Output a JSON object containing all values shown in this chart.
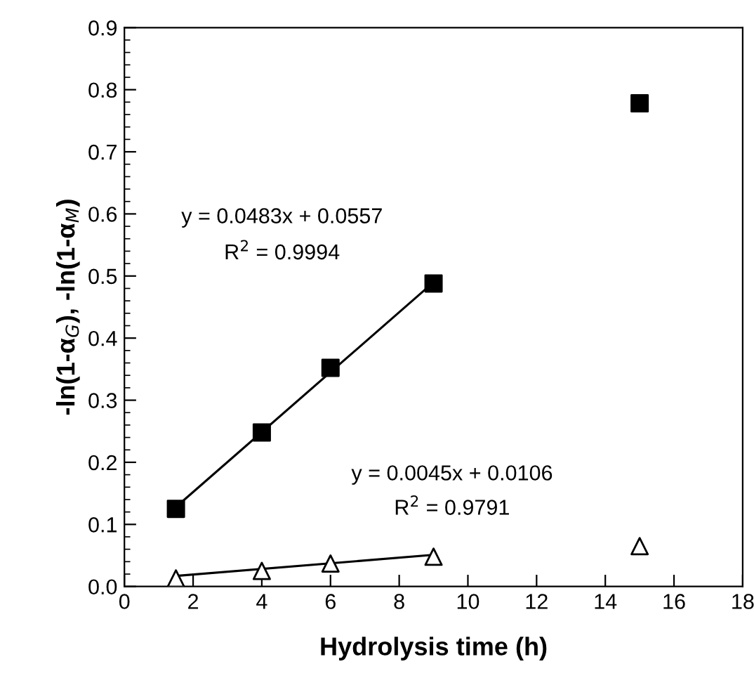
{
  "chart_data": {
    "type": "scatter",
    "xlabel": "Hydrolysis time (h)",
    "ylabel": "-ln(1-α$_{G}$), -ln(1-α$_{M}$)",
    "xlim": [
      0,
      18
    ],
    "xticks": [
      0,
      2,
      4,
      6,
      8,
      10,
      12,
      14,
      16,
      18
    ],
    "ylim": [
      0,
      0.9
    ],
    "yticks": [
      {
        "value": 0,
        "label": "0.0"
      },
      0.1,
      0.2,
      0.3,
      0.4,
      0.5,
      0.6,
      0.7,
      0.8,
      0.9
    ],
    "grid": false,
    "legend": false,
    "series": [
      {
        "marker": "square",
        "color": "#000000",
        "x": [
          1.5,
          4,
          6,
          9,
          15
        ],
        "values": [
          0.125,
          0.248,
          0.352,
          0.488,
          0.778
        ]
      },
      {
        "marker": "triangle",
        "color": "#000000",
        "x": [
          1.5,
          4,
          6,
          9,
          15
        ],
        "values": [
          0.013,
          0.025,
          0.037,
          0.048,
          0.065
        ]
      },
      {
        "type": "line",
        "marker": "none",
        "line_style": "solid",
        "color": "#000000",
        "x": [
          1.5,
          9
        ],
        "values": [
          0.128,
          0.49
        ]
      },
      {
        "type": "line",
        "marker": "none",
        "line_style": "solid",
        "color": "#000000",
        "x": [
          1.5,
          9
        ],
        "values": [
          0.017,
          0.051
        ]
      }
    ],
    "annotations": [
      "y = 0.0483x + 0.0557",
      "R$^{2}$ = 0.9994",
      "y = 0.0045x + 0.0106",
      "R$^{2}$ = 0.9791"
    ]
  }
}
